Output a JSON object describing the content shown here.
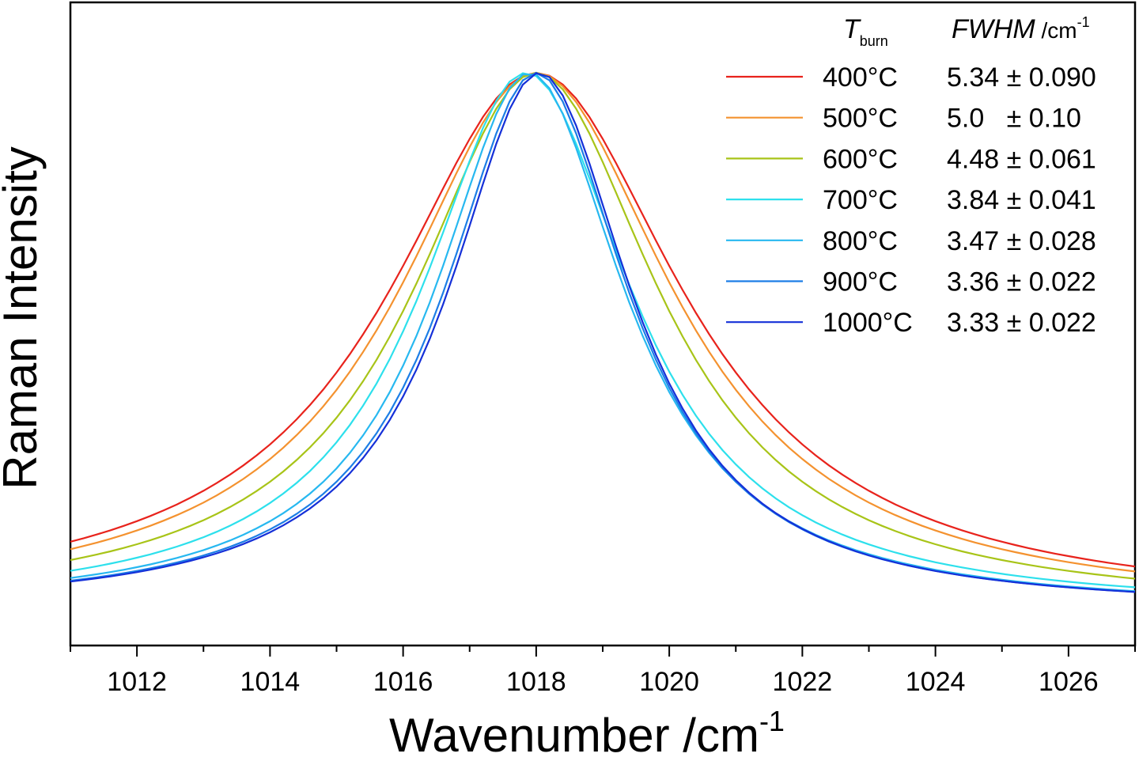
{
  "chart_data": {
    "type": "line",
    "xlabel": "Wavenumber /cm",
    "xlabel_sup": "-1",
    "ylabel": "Raman Intensity",
    "xlim": [
      1011,
      1027
    ],
    "ylim": [
      0,
      1
    ],
    "x_ticks": [
      1012,
      1014,
      1016,
      1018,
      1020,
      1022,
      1024,
      1026
    ],
    "x_tick_labels": [
      "1012",
      "1014",
      "1016",
      "1018",
      "1020",
      "1022",
      "1024",
      "1026"
    ],
    "y_ticks_shown": false,
    "grid": false,
    "legend": {
      "placement": "top-right",
      "header_col1_main": "T",
      "header_col1_sub": "burn",
      "header_col2_main": "FWHM",
      "header_col2_unit": " /cm",
      "header_col2_sup": "-1"
    },
    "series": [
      {
        "name": "400°C",
        "fwhm_label": "5.34 ± 0.090",
        "color": "#e8231c",
        "center": 1018.0,
        "fwhm": 5.34,
        "peak": 0.93,
        "baseline": 0.02
      },
      {
        "name": "500°C",
        "fwhm_label": "5.0   ± 0.10",
        "color": "#f4922f",
        "center": 1018.0,
        "fwhm": 5.0,
        "peak": 0.93,
        "baseline": 0.02
      },
      {
        "name": "600°C",
        "fwhm_label": "4.48 ± 0.061",
        "color": "#a8c418",
        "center": 1018.0,
        "fwhm": 4.48,
        "peak": 0.93,
        "baseline": 0.02
      },
      {
        "name": "700°C",
        "fwhm_label": "3.84 ± 0.041",
        "color": "#2de0ec",
        "center": 1017.85,
        "fwhm": 3.84,
        "peak": 0.93,
        "baseline": 0.02
      },
      {
        "name": "800°C",
        "fwhm_label": "3.47 ± 0.028",
        "color": "#27b8f0",
        "center": 1017.9,
        "fwhm": 3.47,
        "peak": 0.93,
        "baseline": 0.02
      },
      {
        "name": "900°C",
        "fwhm_label": "3.36 ± 0.022",
        "color": "#1c7ee6",
        "center": 1018.0,
        "fwhm": 3.36,
        "peak": 0.93,
        "baseline": 0.02
      },
      {
        "name": "1000°C",
        "fwhm_label": "3.33 ± 0.022",
        "color": "#1530d8",
        "center": 1018.05,
        "fwhm": 3.33,
        "peak": 0.93,
        "baseline": 0.02
      }
    ]
  }
}
